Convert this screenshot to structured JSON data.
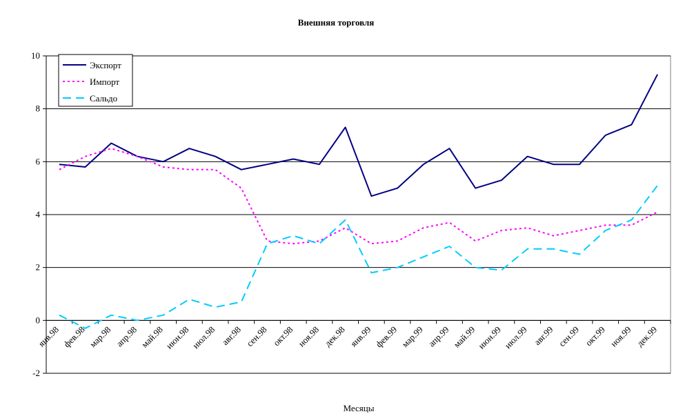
{
  "chart_data": {
    "type": "line",
    "title": "Внешняя торговля",
    "xlabel": "Месяцы",
    "ylabel": "",
    "ylim": [
      -2,
      10
    ],
    "yticks": [
      -2,
      0,
      2,
      4,
      6,
      8,
      10
    ],
    "grid": "horizontal",
    "legend_position": "top-left",
    "categories": [
      "янв.98",
      "фев.98",
      "мар.98",
      "апр.98",
      "май.98",
      "июн.98",
      "июл.98",
      "авг.98",
      "сен.98",
      "окт.98",
      "ноя.98",
      "дек.98",
      "янв.99",
      "фев.99",
      "мар.99",
      "апр.99",
      "май.99",
      "июн.99",
      "июл.99",
      "авг.99",
      "сен.99",
      "окт.99",
      "ноя.99",
      "дек.99"
    ],
    "series": [
      {
        "name": "Экспорт",
        "color": "#000080",
        "dash": "solid",
        "values": [
          5.9,
          5.8,
          6.7,
          6.2,
          6.0,
          6.5,
          6.2,
          5.7,
          5.9,
          6.1,
          5.9,
          7.3,
          4.7,
          5.0,
          5.9,
          6.5,
          5.0,
          5.3,
          6.2,
          5.9,
          5.9,
          7.0,
          7.4,
          9.3
        ]
      },
      {
        "name": "Импорт",
        "color": "#ff00ff",
        "dash": "dotted",
        "values": [
          5.7,
          6.2,
          6.5,
          6.2,
          5.8,
          5.7,
          5.7,
          5.0,
          3.0,
          2.9,
          3.0,
          3.5,
          2.9,
          3.0,
          3.5,
          3.7,
          3.0,
          3.4,
          3.5,
          3.2,
          3.4,
          3.6,
          3.6,
          4.1
        ]
      },
      {
        "name": "Сальдо",
        "color": "#00ccff",
        "dash": "dashed",
        "values": [
          0.2,
          -0.3,
          0.2,
          0.0,
          0.2,
          0.8,
          0.5,
          0.7,
          2.9,
          3.2,
          2.9,
          3.8,
          1.8,
          2.0,
          2.4,
          2.8,
          2.0,
          1.9,
          2.7,
          2.7,
          2.5,
          3.4,
          3.8,
          5.1
        ]
      }
    ]
  }
}
